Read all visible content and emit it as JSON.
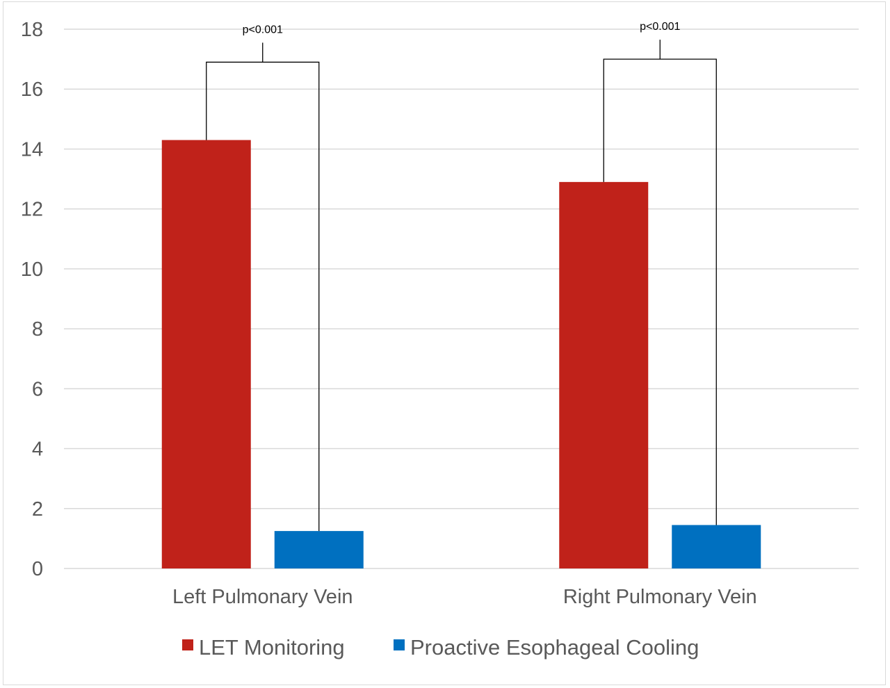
{
  "chart_data": {
    "type": "bar",
    "categories": [
      "Left Pulmonary Vein",
      "Right Pulmonary Vein"
    ],
    "series": [
      {
        "name": "LET Monitoring",
        "color": "#c0221a",
        "values": [
          14.3,
          12.9
        ]
      },
      {
        "name": "Proactive Esophageal Cooling",
        "color": "#0070c0",
        "values": [
          1.25,
          1.45
        ]
      }
    ],
    "ylim": [
      0,
      18
    ],
    "yticks": [
      0,
      2,
      4,
      6,
      8,
      10,
      12,
      14,
      16,
      18
    ],
    "grid": true,
    "legend_position": "bottom",
    "annotations": [
      {
        "category_index": 0,
        "text": "p<0.001",
        "bracket_value": 16.9
      },
      {
        "category_index": 1,
        "text": "p<0.001",
        "bracket_value": 17.0
      }
    ]
  }
}
